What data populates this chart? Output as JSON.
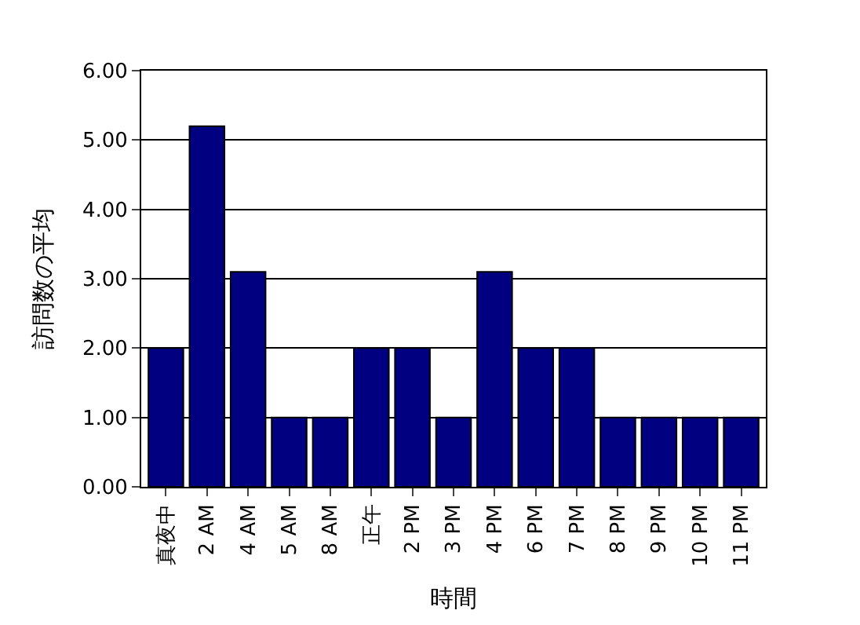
{
  "chart_data": {
    "type": "bar",
    "xlabel": "時間",
    "ylabel": "訪問数の平均",
    "categories": [
      "真夜中",
      "2 AM",
      "4 AM",
      "5 AM",
      "8 AM",
      "正午",
      "2 PM",
      "3 PM",
      "4 PM",
      "6 PM",
      "7 PM",
      "8 PM",
      "9 PM",
      "10 PM",
      "11 PM"
    ],
    "values": [
      2,
      5.2,
      3.1,
      1,
      1,
      2,
      2,
      1,
      3.1,
      2,
      2,
      1,
      1,
      1,
      1
    ],
    "color": "#000080",
    "ylim": [
      0,
      6
    ],
    "yticks": [
      {
        "value": 0,
        "label": "0.00"
      },
      {
        "value": 1,
        "label": "1.00"
      },
      {
        "value": 2,
        "label": "2.00"
      },
      {
        "value": 3,
        "label": "3.00"
      },
      {
        "value": 4,
        "label": "4.00"
      },
      {
        "value": 5,
        "label": "5.00"
      },
      {
        "value": 6,
        "label": "6.00"
      }
    ],
    "grid": "y"
  }
}
